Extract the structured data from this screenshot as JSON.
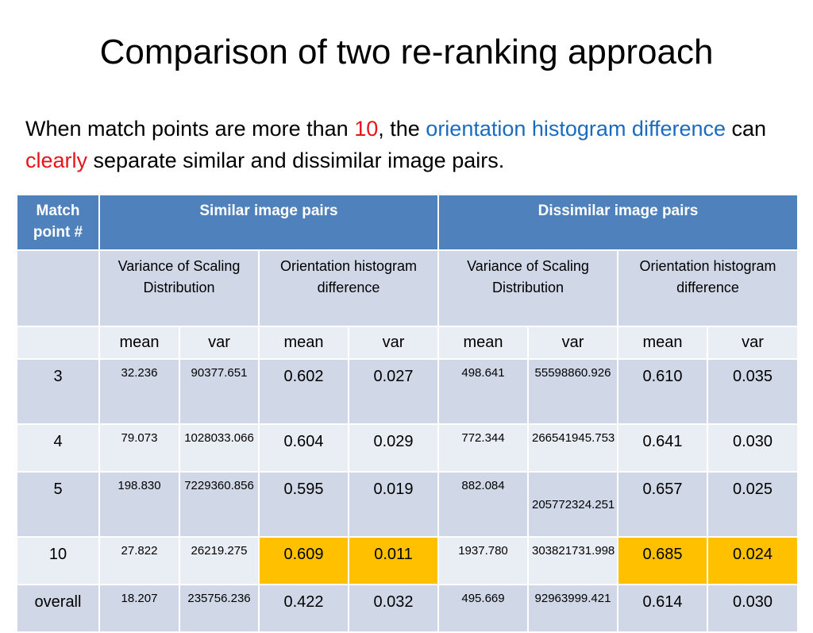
{
  "title": "Comparison of two re-ranking approach",
  "subtitle": {
    "p1": "When match points are more than ",
    "num": "10",
    "p2": ", the ",
    "term": "orientation histogram difference",
    "p3": " can ",
    "emph": "clearly",
    "p4": " separate similar and dissimilar image pairs."
  },
  "table": {
    "col_match": "Match point #",
    "col_similar": "Similar image pairs",
    "col_dissimilar": "Dissimilar image pairs",
    "sub_scaling": "Variance of Scaling Distribution",
    "sub_orient": "Orientation histogram difference",
    "stat_mean": "mean",
    "stat_var": "var",
    "rows": [
      {
        "match": "3",
        "s_scale_mean": "32.236",
        "s_scale_var": "90377.651",
        "s_or_mean": "0.602",
        "s_or_var": "0.027",
        "d_scale_mean": "498.641",
        "d_scale_var": "55598860.926",
        "d_or_mean": "0.610",
        "d_or_var": "0.035"
      },
      {
        "match": "4",
        "s_scale_mean": "79.073",
        "s_scale_var": "1028033.066",
        "s_or_mean": "0.604",
        "s_or_var": "0.029",
        "d_scale_mean": "772.344",
        "d_scale_var": "266541945.753",
        "d_or_mean": "0.641",
        "d_or_var": "0.030"
      },
      {
        "match": "5",
        "s_scale_mean": "198.830",
        "s_scale_var": "7229360.856",
        "s_or_mean": "0.595",
        "s_or_var": "0.019",
        "d_scale_mean": "882.084",
        "d_scale_var": "205772324.251",
        "d_or_mean": "0.657",
        "d_or_var": "0.025"
      },
      {
        "match": "10",
        "s_scale_mean": "27.822",
        "s_scale_var": "26219.275",
        "s_or_mean": "0.609",
        "s_or_var": "0.011",
        "d_scale_mean": "1937.780",
        "d_scale_var": "303821731.998",
        "d_or_mean": "0.685",
        "d_or_var": "0.024"
      },
      {
        "match": "overall",
        "s_scale_mean": "18.207",
        "s_scale_var": "235756.236",
        "s_or_mean": "0.422",
        "s_or_var": "0.032",
        "d_scale_mean": "495.669",
        "d_scale_var": "92963999.421",
        "d_or_mean": "0.614",
        "d_or_var": "0.030"
      }
    ]
  },
  "colors": {
    "header_blue": "#4f81bd",
    "row_dark": "#d0d8e8",
    "row_light": "#e9edf4",
    "highlight": "#ffc000",
    "accent_red": "#e8141a",
    "accent_blue": "#1a6bbf"
  }
}
